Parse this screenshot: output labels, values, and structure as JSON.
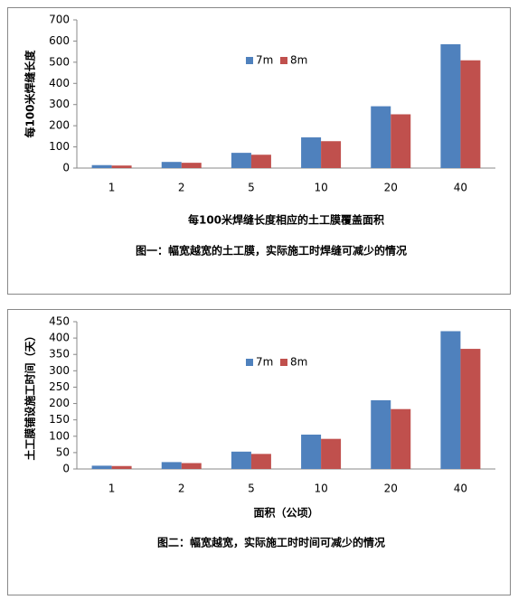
{
  "chart_data": [
    {
      "type": "bar",
      "y_label": "每100米焊缝长度",
      "x_label": "每100米焊缝长度相应的土工膜覆盖面积",
      "caption": "图一：幅宽越宽的土工膜，实际施工时焊缝可减少的情况",
      "categories": [
        "1",
        "2",
        "5",
        "10",
        "20",
        "40"
      ],
      "series": [
        {
          "name": "7m",
          "color": "#4f81bd",
          "values": [
            14,
            29,
            72,
            145,
            292,
            585
          ]
        },
        {
          "name": "8m",
          "color": "#c0504d",
          "values": [
            12,
            25,
            63,
            127,
            254,
            509
          ]
        }
      ],
      "ylim": [
        0,
        700
      ],
      "yticks": [
        0,
        100,
        200,
        300,
        400,
        500,
        600,
        700
      ],
      "grid": false
    },
    {
      "type": "bar",
      "y_label": "土工膜铺设施工时间（天）",
      "x_label": "面积（公顷）",
      "caption": "图二：幅宽越宽，实际施工时时间可减少的情况",
      "categories": [
        "1",
        "2",
        "5",
        "10",
        "20",
        "40"
      ],
      "series": [
        {
          "name": "7m",
          "color": "#4f81bd",
          "values": [
            10,
            21,
            53,
            105,
            210,
            421
          ]
        },
        {
          "name": "8m",
          "color": "#c0504d",
          "values": [
            9,
            18,
            46,
            92,
            183,
            367
          ]
        }
      ],
      "ylim": [
        0,
        450
      ],
      "yticks": [
        0,
        50,
        100,
        150,
        200,
        250,
        300,
        350,
        400,
        450
      ],
      "grid": false
    }
  ]
}
